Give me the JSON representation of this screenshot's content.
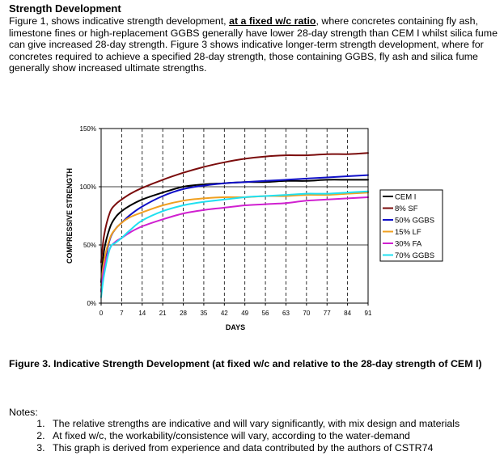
{
  "document": {
    "heading": "Strength Development",
    "intro_before": "Figure 1, shows indicative strength development, ",
    "intro_emphasis": "at a fixed w/c ratio",
    "intro_after": ", where concretes containing fly ash, limestone fines or high-replacement GGBS generally have lower 28-day strength than CEM I whilst silica fume can give increased 28-day strength.  Figure 3 shows indicative longer-term strength development, where for concretes required to achieve a specified 28-day strength, those containing GGBS, fly ash and silica fume generally show increased ultimate strengths.",
    "caption": "Figure 3.  Indicative Strength Development (at fixed w/c and relative to the 28-day strength of CEM I)",
    "notes_title": "Notes:",
    "notes": [
      "The relative strengths are indicative and will vary significantly, with mix design and materials",
      "At fixed w/c, the workability/consistence will vary, according to the water-demand",
      "This graph is derived from experience and data contributed by the authors of CSTR74"
    ]
  },
  "chart_data": {
    "type": "line",
    "title": "",
    "xlabel": "DAYS",
    "ylabel": "COMPRESSIVE STRENGTH",
    "xlim": [
      0,
      91
    ],
    "ylim": [
      0,
      150
    ],
    "x_ticks": [
      0,
      7,
      14,
      21,
      28,
      35,
      42,
      49,
      56,
      63,
      70,
      77,
      84,
      91
    ],
    "y_ticks": [
      0,
      50,
      100,
      150
    ],
    "y_tick_labels": [
      "0%",
      "50%",
      "100%",
      "150%"
    ],
    "grid": "vertical dashed at each x tick; solid horizontal at 50% and 100%",
    "legend_position": "right",
    "series": [
      {
        "name": "CEM I",
        "color": "#000000",
        "x": [
          0,
          1,
          3,
          5,
          7,
          10,
          14,
          21,
          28,
          35,
          42,
          49,
          56,
          63,
          70,
          77,
          84,
          91
        ],
        "y": [
          18,
          45,
          65,
          74,
          79,
          84,
          89,
          95,
          100,
          102,
          103,
          104,
          104,
          105,
          105,
          106,
          106,
          106
        ]
      },
      {
        "name": "8% SF",
        "color": "#7b0c0c",
        "x": [
          0,
          1,
          3,
          5,
          7,
          10,
          14,
          21,
          28,
          35,
          42,
          49,
          56,
          63,
          70,
          77,
          84,
          91
        ],
        "y": [
          35,
          58,
          78,
          85,
          89,
          94,
          99,
          106,
          112,
          117,
          121,
          124,
          126,
          127,
          127,
          128,
          128,
          129
        ]
      },
      {
        "name": "50% GGBS",
        "color": "#1010c8",
        "x": [
          0,
          1,
          3,
          5,
          7,
          10,
          14,
          21,
          28,
          35,
          42,
          49,
          56,
          63,
          70,
          77,
          84,
          91
        ],
        "y": [
          10,
          32,
          55,
          64,
          69,
          76,
          83,
          92,
          98,
          101,
          103,
          104,
          105,
          106,
          107,
          108,
          109,
          110
        ]
      },
      {
        "name": "15% LF",
        "color": "#f0a020",
        "x": [
          0,
          1,
          3,
          5,
          7,
          10,
          14,
          21,
          28,
          35,
          42,
          49,
          56,
          63,
          70,
          77,
          84,
          91
        ],
        "y": [
          15,
          36,
          56,
          64,
          69,
          74,
          78,
          84,
          88,
          90,
          91,
          91,
          92,
          92,
          93,
          93,
          94,
          95
        ]
      },
      {
        "name": "30% FA",
        "color": "#d020d0",
        "x": [
          0,
          1,
          3,
          5,
          7,
          10,
          14,
          21,
          28,
          35,
          42,
          49,
          56,
          63,
          70,
          77,
          84,
          91
        ],
        "y": [
          10,
          30,
          47,
          53,
          56,
          61,
          66,
          72,
          77,
          80,
          82,
          84,
          85,
          86,
          88,
          89,
          90,
          91
        ]
      },
      {
        "name": "70% GGBS",
        "color": "#20e0f0",
        "x": [
          0,
          1,
          3,
          5,
          7,
          10,
          14,
          21,
          28,
          35,
          42,
          49,
          56,
          63,
          70,
          77,
          84,
          91
        ],
        "y": [
          5,
          24,
          47,
          52,
          56,
          63,
          71,
          79,
          84,
          87,
          89,
          91,
          92,
          93,
          94,
          94,
          95,
          96
        ]
      }
    ]
  }
}
